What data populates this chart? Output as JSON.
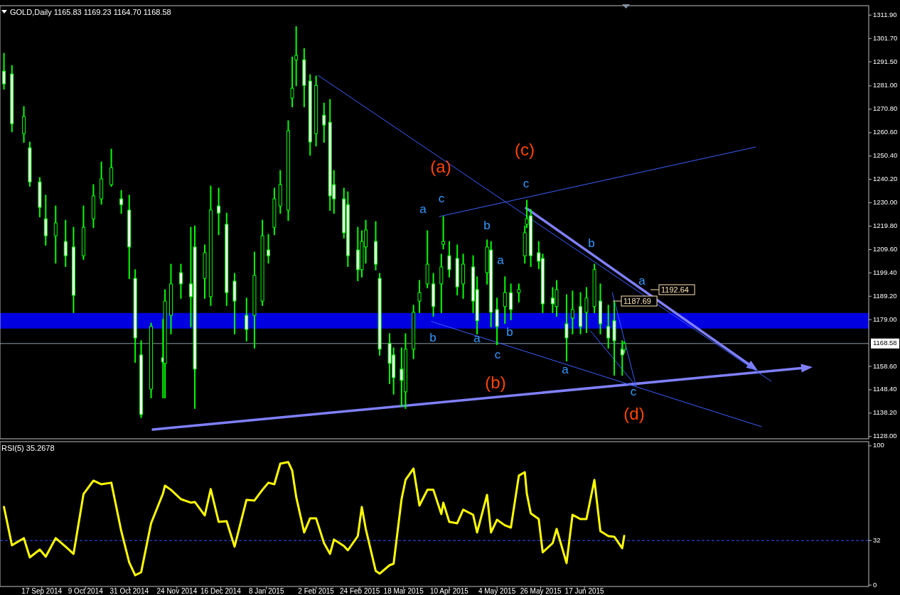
{
  "chart_data": [
    {
      "type": "candlestick",
      "title": "GOLD,Daily  1165.83 1169.23 1164.70 1168.58",
      "x": [
        "2014-08-29",
        "2014-09-02",
        "2014-09-08",
        "2014-09-11",
        "2014-09-16",
        "2014-09-19",
        "2014-09-24",
        "2014-09-29",
        "2014-10-03",
        "2014-10-08",
        "2014-10-13",
        "2014-10-17",
        "2014-10-22",
        "2014-10-27",
        "2014-10-31",
        "2014-11-03",
        "2014-11-06",
        "2014-11-11",
        "2014-11-17",
        "2014-11-18",
        "2014-11-21",
        "2014-11-26",
        "2014-12-01",
        "2014-12-03",
        "2014-12-08",
        "2014-12-11",
        "2014-12-15",
        "2014-12-19",
        "2014-12-23",
        "2014-12-29",
        "2015-01-02",
        "2015-01-06",
        "2015-01-09",
        "2015-01-12",
        "2015-01-15",
        "2015-01-19",
        "2015-01-21",
        "2015-01-23",
        "2015-01-27",
        "2015-01-30",
        "2015-02-02",
        "2015-02-06",
        "2015-02-09",
        "2015-02-11",
        "2015-02-16",
        "2015-02-18",
        "2015-02-23",
        "2015-02-25",
        "2015-02-27",
        "2015-03-04",
        "2015-03-06",
        "2015-03-11",
        "2015-03-13",
        "2015-03-17",
        "2015-03-19",
        "2015-03-23",
        "2015-03-26",
        "2015-03-30",
        "2015-04-02",
        "2015-04-06",
        "2015-04-07",
        "2015-04-10",
        "2015-04-14",
        "2015-04-17",
        "2015-04-22",
        "2015-04-24",
        "2015-04-29",
        "2015-05-01",
        "2015-05-04",
        "2015-05-08",
        "2015-05-11",
        "2015-05-15",
        "2015-05-18",
        "2015-05-19",
        "2015-05-21",
        "2015-05-25",
        "2015-05-27",
        "2015-06-01",
        "2015-06-03",
        "2015-06-08",
        "2015-06-11",
        "2015-06-15",
        "2015-06-18",
        "2015-06-22",
        "2015-06-25",
        "2015-06-29",
        "2015-07-02",
        "2015-07-06",
        "2015-07-07"
      ],
      "series": [
        {
          "color": "#00ff00",
          "ohlc": [
            [
              1287.4,
              1295.2,
              1279.7,
              1281.9
            ],
            [
              1286.2,
              1289.9,
              1261.1,
              1264.5
            ],
            [
              1260.2,
              1272.0,
              1256.5,
              1267.6
            ],
            [
              1254.0,
              1256.5,
              1237.3,
              1239.1
            ],
            [
              1239.1,
              1241.0,
              1224.0,
              1228.0
            ],
            [
              1223.0,
              1233.3,
              1211.6,
              1215.6
            ],
            [
              1215.6,
              1228.6,
              1203.8,
              1221.2
            ],
            [
              1213.1,
              1222.4,
              1202.3,
              1206.9
            ],
            [
              1210.7,
              1219.3,
              1182.2,
              1189.6
            ],
            [
              1206.9,
              1228.6,
              1205.4,
              1219.3
            ],
            [
              1223.0,
              1237.9,
              1219.3,
              1233.0
            ],
            [
              1231.7,
              1247.8,
              1229.5,
              1240.4
            ],
            [
              1237.9,
              1253.4,
              1237.3,
              1245.3
            ],
            [
              1231.7,
              1235.4,
              1225.5,
              1229.2
            ],
            [
              1226.8,
              1233.3,
              1197.0,
              1210.7
            ],
            [
              1197.0,
              1200.8,
              1160.5,
              1171.0
            ],
            [
              1163.6,
              1169.8,
              1136.4,
              1137.6
            ],
            [
              1148.7,
              1177.5,
              1145.0,
              1176.0
            ],
            [
              1162.4,
              1179.1,
              1145.0,
              1160.5
            ],
            [
              1159.9,
              1192.1,
              1145.0,
              1187.1
            ],
            [
              1180.9,
              1203.2,
              1172.9,
              1194.6
            ],
            [
              1199.5,
              1203.2,
              1188.4,
              1194.6
            ],
            [
              1194.6,
              1219.3,
              1176.0,
              1189.0
            ],
            [
              1210.7,
              1219.9,
              1140.4,
              1157.4
            ],
            [
              1197.0,
              1211.6,
              1188.4,
              1208.2
            ],
            [
              1189.0,
              1237.3,
              1185.3,
              1226.8
            ],
            [
              1228.6,
              1236.4,
              1216.2,
              1225.5
            ],
            [
              1220.6,
              1225.5,
              1185.3,
              1190.8
            ],
            [
              1195.8,
              1199.2,
              1172.9,
              1187.1
            ],
            [
              1180.9,
              1188.4,
              1169.8,
              1174.7
            ],
            [
              1180.9,
              1208.5,
              1166.7,
              1198.3
            ],
            [
              1187.1,
              1222.4,
              1185.3,
              1215.6
            ],
            [
              1209.4,
              1216.2,
              1203.8,
              1206.9
            ],
            [
              1219.3,
              1236.4,
              1216.2,
              1231.7
            ],
            [
              1228.6,
              1244.1,
              1225.5,
              1237.9
            ],
            [
              1226.8,
              1265.8,
              1222.4,
              1261.4
            ],
            [
              1275.7,
              1293.6,
              1272.0,
              1280.0
            ],
            [
              1292.4,
              1306.9,
              1281.2,
              1294.3
            ],
            [
              1292.4,
              1297.3,
              1272.0,
              1281.2
            ],
            [
              1283.1,
              1285.9,
              1250.9,
              1256.5
            ],
            [
              1260.2,
              1285.3,
              1254.9,
              1281.2
            ],
            [
              1268.2,
              1273.5,
              1256.5,
              1263.9
            ],
            [
              1265.1,
              1275.1,
              1226.8,
              1233.0
            ],
            [
              1237.9,
              1244.1,
              1225.5,
              1231.7
            ],
            [
              1231.7,
              1236.4,
              1214.7,
              1216.9
            ],
            [
              1229.2,
              1234.8,
              1202.3,
              1206.9
            ],
            [
              1209.4,
              1219.3,
              1196.1,
              1200.8
            ],
            [
              1200.8,
              1217.8,
              1197.7,
              1213.1
            ],
            [
              1210.7,
              1222.4,
              1203.8,
              1218.1
            ],
            [
              1213.1,
              1221.8,
              1200.8,
              1203.2
            ],
            [
              1197.0,
              1199.2,
              1163.6,
              1166.1
            ],
            [
              1168.6,
              1172.9,
              1151.2,
              1159.9
            ],
            [
              1163.6,
              1166.7,
              1146.6,
              1153.7
            ],
            [
              1157.4,
              1166.7,
              1141.3,
              1152.5
            ],
            [
              1147.5,
              1172.9,
              1140.4,
              1166.1
            ],
            [
              1166.1,
              1185.3,
              1162.1,
              1182.2
            ],
            [
              1187.1,
              1196.1,
              1182.2,
              1190.8
            ],
            [
              1194.6,
              1217.8,
              1193.0,
              1203.2
            ],
            [
              1194.6,
              1199.2,
              1180.6,
              1184.7
            ],
            [
              1194.6,
              1207.6,
              1182.2,
              1202.0
            ],
            [
              1211.9,
              1224.0,
              1210.0,
              1213.1
            ],
            [
              1206.9,
              1213.1,
              1197.7,
              1200.8
            ],
            [
              1205.7,
              1211.6,
              1189.9,
              1193.3
            ],
            [
              1194.6,
              1207.6,
              1188.4,
              1203.2
            ],
            [
              1202.0,
              1206.9,
              1182.2,
              1187.1
            ],
            [
              1192.1,
              1197.7,
              1172.9,
              1178.5
            ],
            [
              1199.5,
              1213.8,
              1194.6,
              1210.7
            ],
            [
              1209.4,
              1213.1,
              1176.0,
              1182.2
            ],
            [
              1183.4,
              1188.4,
              1168.2,
              1176.0
            ],
            [
              1184.7,
              1197.7,
              1177.5,
              1190.8
            ],
            [
              1190.8,
              1194.6,
              1179.1,
              1183.4
            ],
            [
              1190.8,
              1194.6,
              1186.8,
              1192.1
            ],
            [
              1206.9,
              1219.9,
              1203.8,
              1216.9
            ],
            [
              1220.6,
              1231.1,
              1219.3,
              1223.0
            ],
            [
              1224.3,
              1227.1,
              1202.3,
              1206.9
            ],
            [
              1208.2,
              1213.1,
              1201.4,
              1204.5
            ],
            [
              1205.7,
              1207.6,
              1182.2,
              1185.9
            ],
            [
              1188.4,
              1193.0,
              1182.2,
              1185.9
            ],
            [
              1184.7,
              1196.1,
              1180.6,
              1192.1
            ],
            [
              1177.2,
              1189.9,
              1161.1,
              1171.0
            ],
            [
              1179.7,
              1191.5,
              1172.9,
              1183.4
            ],
            [
              1184.7,
              1190.8,
              1172.9,
              1176.0
            ],
            [
              1182.2,
              1193.0,
              1173.5,
              1188.4
            ],
            [
              1184.7,
              1203.2,
              1182.2,
              1200.8
            ],
            [
              1187.1,
              1194.6,
              1172.9,
              1177.2
            ],
            [
              1176.0,
              1185.3,
              1166.7,
              1171.0
            ],
            [
              1178.5,
              1186.8,
              1154.9,
              1169.8
            ],
            [
              1166.1,
              1169.8,
              1154.9,
              1163.6
            ],
            [
              1165.83,
              1169.23,
              1164.7,
              1168.58
            ]
          ]
        },
        {
          "type": "line",
          "color": "#3a5fff",
          "x": [
            "2015-02-03",
            "2015-09-19"
          ],
          "values": [
            1285.6,
            1152.1
          ]
        },
        {
          "type": "line",
          "color": "#3a5fff",
          "x": [
            "2015-04-05",
            "2015-09-11"
          ],
          "values": [
            1224.0,
            1254.3
          ]
        },
        {
          "type": "line",
          "color": "#3a5fff",
          "x": [
            "2015-04-01",
            "2015-09-14"
          ],
          "values": [
            1178.2,
            1132.3
          ]
        },
        {
          "type": "line",
          "color": "#3a5fff",
          "x": [
            "2015-06-20",
            "2015-07-13"
          ],
          "values": [
            1174.1,
            1150.0
          ]
        },
        {
          "type": "line",
          "color": "#3a5fff",
          "x": [
            "2015-07-01",
            "2015-07-13"
          ],
          "values": [
            1190.8,
            1150.0
          ]
        }
      ],
      "xlim": [
        "2014-08-27",
        "2015-11-07"
      ],
      "ylim": [
        1127,
        1316
      ],
      "yticks": [
        {
          "value": 1311.9,
          "label": "1311.90"
        },
        {
          "value": 1301.7,
          "label": "1301.70"
        },
        {
          "value": 1291.5,
          "label": "1291.50"
        },
        {
          "value": 1281,
          "label": "1281.00"
        },
        {
          "value": 1270.8,
          "label": "1270.80"
        },
        {
          "value": 1260.6,
          "label": "1260.60"
        },
        {
          "value": 1250.4,
          "label": "1250.40"
        },
        {
          "value": 1240.2,
          "label": "1240.20"
        },
        {
          "value": 1230,
          "label": "1230.00"
        },
        {
          "value": 1219.8,
          "label": "1219.80"
        },
        {
          "value": 1209.6,
          "label": "1209.60"
        },
        {
          "value": 1199.4,
          "label": "1199.40"
        },
        {
          "value": 1189.2,
          "label": "1189.20"
        },
        {
          "value": 1179,
          "label": "1179.00"
        },
        {
          "value": 1158.6,
          "label": "1158.60"
        },
        {
          "value": 1148.4,
          "label": "1148.40"
        },
        {
          "value": 1138.2,
          "label": "1138.20"
        },
        {
          "value": 1128,
          "label": "1128.00"
        }
      ],
      "tick_labels": "y",
      "bands": [
        {
          "axis": "y",
          "from": 1175.1,
          "to": 1181.9,
          "color": "#0000e0"
        }
      ],
      "ref_lines": [
        {
          "axis": "y",
          "value": 1168.58,
          "label": "1168.58",
          "color": "#8c9aa8"
        }
      ],
      "annotations": [
        "(a)",
        "(b)",
        "(c)",
        "(d)",
        "a",
        "c",
        "b",
        "a",
        "c",
        "b",
        "a",
        "b",
        "a",
        "c",
        "b",
        "a",
        "c",
        "1192.64",
        "1187.69"
      ]
    },
    {
      "type": "line",
      "title": "RSI(5) 35.2678",
      "x": [
        "2014-08-29",
        "2014-09-02",
        "2014-09-08",
        "2014-09-11",
        "2014-09-16",
        "2014-09-19",
        "2014-09-24",
        "2014-09-29",
        "2014-10-03",
        "2014-10-08",
        "2014-10-13",
        "2014-10-17",
        "2014-10-22",
        "2014-10-27",
        "2014-10-31",
        "2014-11-03",
        "2014-11-06",
        "2014-11-11",
        "2014-11-17",
        "2014-11-18",
        "2014-11-21",
        "2014-11-26",
        "2014-12-01",
        "2014-12-03",
        "2014-12-08",
        "2014-12-11",
        "2014-12-15",
        "2014-12-19",
        "2014-12-23",
        "2014-12-29",
        "2015-01-02",
        "2015-01-06",
        "2015-01-09",
        "2015-01-12",
        "2015-01-15",
        "2015-01-19",
        "2015-01-21",
        "2015-01-23",
        "2015-01-27",
        "2015-01-30",
        "2015-02-02",
        "2015-02-06",
        "2015-02-09",
        "2015-02-11",
        "2015-02-16",
        "2015-02-18",
        "2015-02-23",
        "2015-02-25",
        "2015-02-27",
        "2015-03-04",
        "2015-03-06",
        "2015-03-11",
        "2015-03-13",
        "2015-03-17",
        "2015-03-19",
        "2015-03-23",
        "2015-03-26",
        "2015-03-30",
        "2015-04-02",
        "2015-04-06",
        "2015-04-07",
        "2015-04-10",
        "2015-04-14",
        "2015-04-17",
        "2015-04-22",
        "2015-04-24",
        "2015-04-29",
        "2015-05-01",
        "2015-05-04",
        "2015-05-08",
        "2015-05-11",
        "2015-05-15",
        "2015-05-18",
        "2015-05-19",
        "2015-05-21",
        "2015-05-25",
        "2015-05-27",
        "2015-06-01",
        "2015-06-03",
        "2015-06-08",
        "2015-06-11",
        "2015-06-15",
        "2015-06-18",
        "2015-06-22",
        "2015-06-25",
        "2015-06-29",
        "2015-07-02",
        "2015-07-06",
        "2015-07-07"
      ],
      "series": [
        {
          "color": "#ffff00",
          "values": [
            56.1,
            28.6,
            33.7,
            19.9,
            25.5,
            20.4,
            33.7,
            27.6,
            22.4,
            65.3,
            75.0,
            72.4,
            73.5,
            38.8,
            16.3,
            7.1,
            9.2,
            44.4,
            65.8,
            71.4,
            68.4,
            61.7,
            59.2,
            59.7,
            50.0,
            68.9,
            45.4,
            45.9,
            27.6,
            61.2,
            60.7,
            68.4,
            73.5,
            72.4,
            87.2,
            88.3,
            82.1,
            63.3,
            37.8,
            48.0,
            48.0,
            30.1,
            22.4,
            32.7,
            28.1,
            25.0,
            35.2,
            56.1,
            40.3,
            10.2,
            8.2,
            14.3,
            15.3,
            61.7,
            75.5,
            83.7,
            57.1,
            68.4,
            68.4,
            51.0,
            59.2,
            45.4,
            44.4,
            54.1,
            50.5,
            37.8,
            64.8,
            37.8,
            46.9,
            42.9,
            41.3,
            78.6,
            81.1,
            65.8,
            51.5,
            47.4,
            23.5,
            30.1,
            40.3,
            15.8,
            50.5,
            47.4,
            47.4,
            75.5,
            38.8,
            35.2,
            34.7,
            26.5,
            35.3
          ]
        }
      ],
      "xlim": [
        "2014-08-27",
        "2015-11-07"
      ],
      "xticks": [
        {
          "value": "2014-09-17",
          "label": "17 Sep 2014"
        },
        {
          "value": "2014-10-09",
          "label": "9 Oct 2014"
        },
        {
          "value": "2014-10-31",
          "label": "31 Oct 2014"
        },
        {
          "value": "2014-11-24",
          "label": "24 Nov 2014"
        },
        {
          "value": "2014-12-16",
          "label": "16 Dec 2014"
        },
        {
          "value": "2015-01-08",
          "label": "8 Jan 2015"
        },
        {
          "value": "2015-02-02",
          "label": "2 Feb 2015"
        },
        {
          "value": "2015-02-24",
          "label": "24 Feb 2015"
        },
        {
          "value": "2015-03-18",
          "label": "18 Mar 2015"
        },
        {
          "value": "2015-04-10",
          "label": "10 Apr 2015"
        },
        {
          "value": "2015-05-04",
          "label": "4 May 2015"
        },
        {
          "value": "2015-05-26",
          "label": "26 May 2015"
        },
        {
          "value": "2015-06-17",
          "label": "17 Jun 2015"
        }
      ],
      "ylim": [
        -1,
        103
      ],
      "yticks": [
        0,
        32,
        100
      ],
      "ref_lines": [
        {
          "axis": "y",
          "value": 32,
          "color": "#3050ff",
          "line_style": "dashed"
        }
      ]
    }
  ]
}
